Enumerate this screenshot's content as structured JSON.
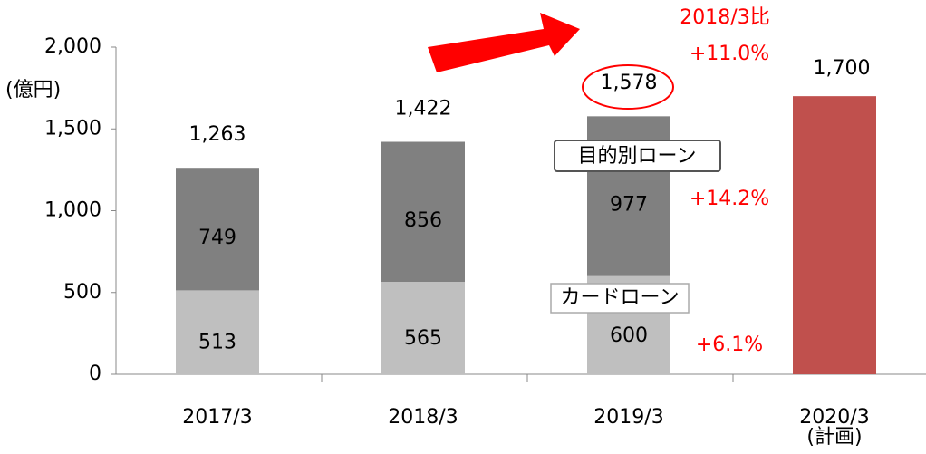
{
  "chart_data": {
    "type": "bar",
    "stacked": true,
    "y_unit_label": "(億円)",
    "categories": [
      "2017/3",
      "2018/3",
      "2019/3",
      "2020/3\n(計画)"
    ],
    "series": [
      {
        "name": "カードローン",
        "color": "#bfbfbf",
        "values": [
          513,
          565,
          600,
          null
        ]
      },
      {
        "name": "目的別ローン",
        "color": "#808080",
        "values": [
          749,
          856,
          977,
          null
        ]
      },
      {
        "color": "#c0504d",
        "values": [
          null,
          null,
          null,
          1700
        ],
        "value_labels": [
          null,
          null,
          null,
          "1,700"
        ]
      }
    ],
    "totals": {
      "values": [
        1263,
        1422,
        1578,
        null
      ],
      "value_labels": [
        "1,263",
        "1,422",
        "1,578",
        null
      ]
    },
    "annotations": [
      "2018/3比",
      "+11.0%",
      "+14.2%",
      "+6.1%"
    ],
    "ylim": [
      0,
      2000
    ],
    "yticks": [
      0,
      500,
      {
        "value": 1000,
        "label": "1,000"
      },
      {
        "value": 1500,
        "label": "1,500"
      },
      {
        "value": 2000,
        "label": "2,000"
      }
    ]
  }
}
